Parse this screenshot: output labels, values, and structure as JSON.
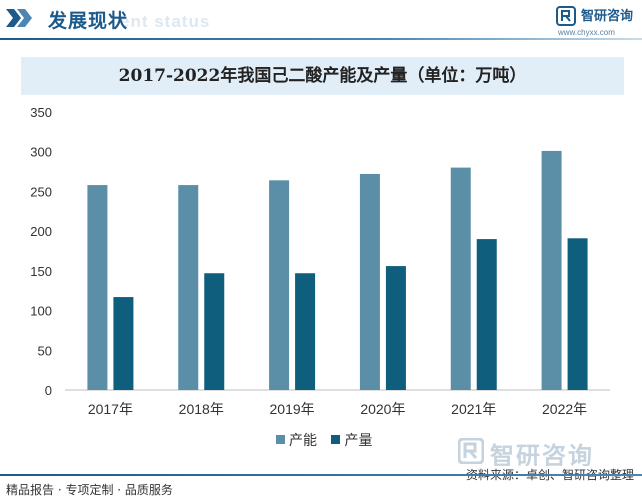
{
  "header": {
    "title": "发展现状",
    "watermark_text": "ent status"
  },
  "brand": {
    "name": "智研咨询",
    "url": "www.chyxx.com"
  },
  "chart_data": {
    "type": "bar",
    "title": "2017-2022年我国己二酸产能及产量（单位：万吨）",
    "categories": [
      "2017年",
      "2018年",
      "2019年",
      "2020年",
      "2021年",
      "2022年"
    ],
    "series": [
      {
        "name": "产能",
        "color": "#5b8fa8",
        "values": [
          258,
          258,
          264,
          272,
          280,
          301
        ]
      },
      {
        "name": "产量",
        "color": "#0f5e7e",
        "values": [
          117,
          147,
          147,
          156,
          190,
          191
        ]
      }
    ],
    "ylim": [
      0,
      350
    ],
    "yticks": [
      0,
      50,
      100,
      150,
      200,
      250,
      300,
      350
    ],
    "xlabel": "",
    "ylabel": "",
    "legend_position": "bottom",
    "grid": false
  },
  "footer": {
    "left": "精品报告 · 专项定制 · 品质服务",
    "source": "资料来源：卓创、智研咨询整理",
    "watermark_brand": "智研咨询"
  }
}
